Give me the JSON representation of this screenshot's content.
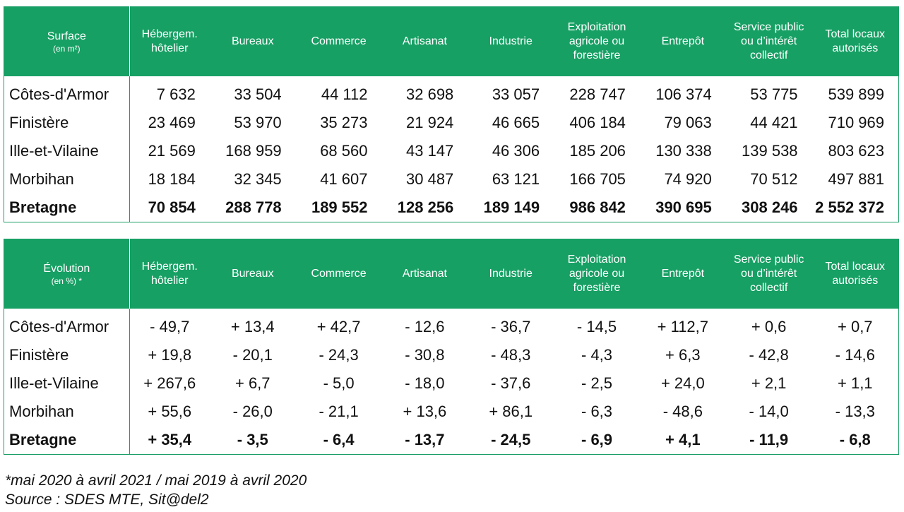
{
  "surface": {
    "header_title": "Surface",
    "header_unit": "(en m²)",
    "columns": [
      "Hébergem. hôtelier",
      "Bureaux",
      "Commerce",
      "Artisanat",
      "Industrie",
      "Exploitation agricole ou forestière",
      "Entrepôt",
      "Service public ou d’intérêt collectif",
      "Total locaux autorisés"
    ],
    "rows": [
      {
        "region": "Côtes-d'Armor",
        "values": [
          "7 632",
          "33 504",
          "44 112",
          "32 698",
          "33 057",
          "228 747",
          "106 374",
          "53 775",
          "539 899"
        ]
      },
      {
        "region": "Finistère",
        "values": [
          "23 469",
          "53 970",
          "35 273",
          "21 924",
          "46 665",
          "406 184",
          "79 063",
          "44 421",
          "710 969"
        ]
      },
      {
        "region": "Ille-et-Vilaine",
        "values": [
          "21 569",
          "168 959",
          "68 560",
          "43 147",
          "46 306",
          "185 206",
          "130 338",
          "139 538",
          "803 623"
        ]
      },
      {
        "region": "Morbihan",
        "values": [
          "18 184",
          "32 345",
          "41 607",
          "30 487",
          "63 121",
          "166 705",
          "74 920",
          "70 512",
          "497 881"
        ]
      },
      {
        "region": "Bretagne",
        "values": [
          "70 854",
          "288 778",
          "189 552",
          "128 256",
          "189 149",
          "986 842",
          "390 695",
          "308 246",
          "2 552 372"
        ],
        "total": true
      }
    ]
  },
  "evolution": {
    "header_title": "Évolution",
    "header_unit": "(en %) *",
    "columns": [
      "Hébergem. hôtelier",
      "Bureaux",
      "Commerce",
      "Artisanat",
      "Industrie",
      "Exploitation agricole ou forestière",
      "Entrepôt",
      "Service public ou d’intérêt collectif",
      "Total locaux autorisés"
    ],
    "rows": [
      {
        "region": "Côtes-d'Armor",
        "values": [
          "- 49,7",
          "+ 13,4",
          "+ 42,7",
          "- 12,6",
          "- 36,7",
          "- 14,5",
          "+ 112,7",
          "+ 0,6",
          "+ 0,7"
        ]
      },
      {
        "region": "Finistère",
        "values": [
          "+ 19,8",
          "- 20,1",
          "- 24,3",
          "- 30,8",
          "- 48,3",
          "- 4,3",
          "+ 6,3",
          "- 42,8",
          "- 14,6"
        ]
      },
      {
        "region": "Ille-et-Vilaine",
        "values": [
          "+ 267,6",
          "+ 6,7",
          "- 5,0",
          "- 18,0",
          "- 37,6",
          "- 2,5",
          "+ 24,0",
          "+ 2,1",
          "+ 1,1"
        ]
      },
      {
        "region": "Morbihan",
        "values": [
          "+ 55,6",
          "- 26,0",
          "- 21,1",
          "+ 13,6",
          "+ 86,1",
          "- 6,3",
          "- 48,6",
          "- 14,0",
          "- 13,3"
        ]
      },
      {
        "region": "Bretagne",
        "values": [
          "+ 35,4",
          "- 3,5",
          "- 6,4",
          "- 13,7",
          "- 24,5",
          "- 6,9",
          "+ 4,1",
          "- 11,9",
          "- 6,8"
        ],
        "total": true
      }
    ]
  },
  "footnotes": {
    "period": "*mai 2020 à avril 2021 / mai 2019 à avril 2020",
    "source": "Source : SDES MTE, Sit@del2"
  },
  "colors": {
    "header_background": "#17a064",
    "header_text": "#ffffff",
    "border": "#1a9e66"
  }
}
